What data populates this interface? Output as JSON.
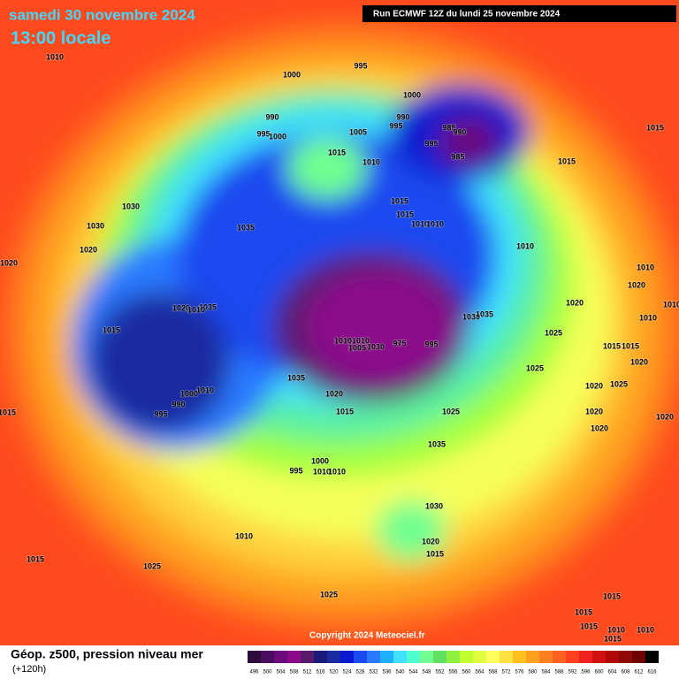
{
  "header": {
    "date": "samedi 30 novembre 2024",
    "time": "13:00 locale",
    "run": "Run ECMWF 12Z du lundi 25 novembre 2024"
  },
  "map": {
    "pressure_labels": [
      1010,
      995,
      1000,
      990,
      995,
      1000,
      1005,
      1000,
      990,
      995,
      985,
      990,
      995,
      985,
      1015,
      1010,
      1015,
      1015,
      1015,
      1015,
      1010,
      1010,
      1030,
      1030,
      1020,
      1020,
      1035,
      1010,
      1010,
      1020,
      1020,
      1010,
      1010,
      1035,
      1020,
      1010,
      1015,
      1030,
      1035,
      1025,
      975,
      995,
      1010,
      1010,
      1030,
      1005,
      1015,
      1015,
      1025,
      1020,
      1035,
      1020,
      1015,
      1025,
      1020,
      1025,
      1020,
      1020,
      1010,
      1000,
      990,
      995,
      1015,
      1020,
      1035,
      1000,
      995,
      1010,
      1010,
      1030,
      1020,
      1015,
      1010,
      1015,
      1025,
      1025,
      1015,
      1015,
      1015,
      1010,
      1010,
      1015
    ]
  },
  "footer": {
    "copyright": "Copyright 2024 Meteociel.fr",
    "title": "Géop. z500, pression niveau mer",
    "lead": "(+120h)"
  },
  "legend": {
    "levels": [
      496,
      500,
      504,
      508,
      512,
      516,
      520,
      524,
      528,
      532,
      536,
      540,
      544,
      548,
      552,
      556,
      560,
      564,
      568,
      572,
      576,
      580,
      584,
      588,
      592,
      596,
      600,
      604,
      608,
      612,
      616
    ],
    "colors": [
      "#2d0b3b",
      "#4a0c5e",
      "#6b0a7d",
      "#8b0a8c",
      "#5a1a6b",
      "#1a1a7a",
      "#1a2aa0",
      "#0a1ad0",
      "#1a4af0",
      "#2a7aff",
      "#20b0ff",
      "#40e0ff",
      "#50ffd0",
      "#70ff90",
      "#60e060",
      "#90f040",
      "#c0ff30",
      "#e0ff40",
      "#ffff60",
      "#ffe040",
      "#ffc020",
      "#ffa020",
      "#ff8020",
      "#ff6020",
      "#ff4020",
      "#f02020",
      "#d01010",
      "#b00808",
      "#900808",
      "#700000",
      "#000000"
    ]
  }
}
